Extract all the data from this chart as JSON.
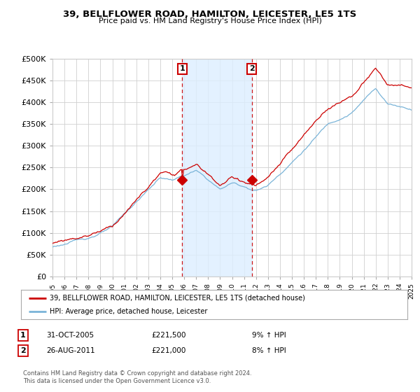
{
  "title": "39, BELLFLOWER ROAD, HAMILTON, LEICESTER, LE5 1TS",
  "subtitle": "Price paid vs. HM Land Registry's House Price Index (HPI)",
  "ylim": [
    0,
    500000
  ],
  "yticks": [
    0,
    50000,
    100000,
    150000,
    200000,
    250000,
    300000,
    350000,
    400000,
    450000,
    500000
  ],
  "background_color": "#ffffff",
  "plot_bg_color": "#ffffff",
  "grid_color": "#d0d0d0",
  "hpi_line_color": "#7ab4d8",
  "price_line_color": "#cc0000",
  "vline_color": "#cc0000",
  "shade_color": "#ddeeff",
  "annotation_box_color": "#ffffff",
  "annotation_border_color": "#cc0000",
  "sale1": {
    "year": 2005.83,
    "price": 221500,
    "label": "1"
  },
  "sale2": {
    "year": 2011.65,
    "price": 221000,
    "label": "2"
  },
  "legend_label_price": "39, BELLFLOWER ROAD, HAMILTON, LEICESTER, LE5 1TS (detached house)",
  "legend_label_hpi": "HPI: Average price, detached house, Leicester",
  "table_rows": [
    {
      "num": "1",
      "date": "31-OCT-2005",
      "price": "£221,500",
      "change": "9% ↑ HPI"
    },
    {
      "num": "2",
      "date": "26-AUG-2011",
      "price": "£221,000",
      "change": "8% ↑ HPI"
    }
  ],
  "footer": "Contains HM Land Registry data © Crown copyright and database right 2024.\nThis data is licensed under the Open Government Licence v3.0.",
  "xstart": 1995,
  "xend": 2025
}
